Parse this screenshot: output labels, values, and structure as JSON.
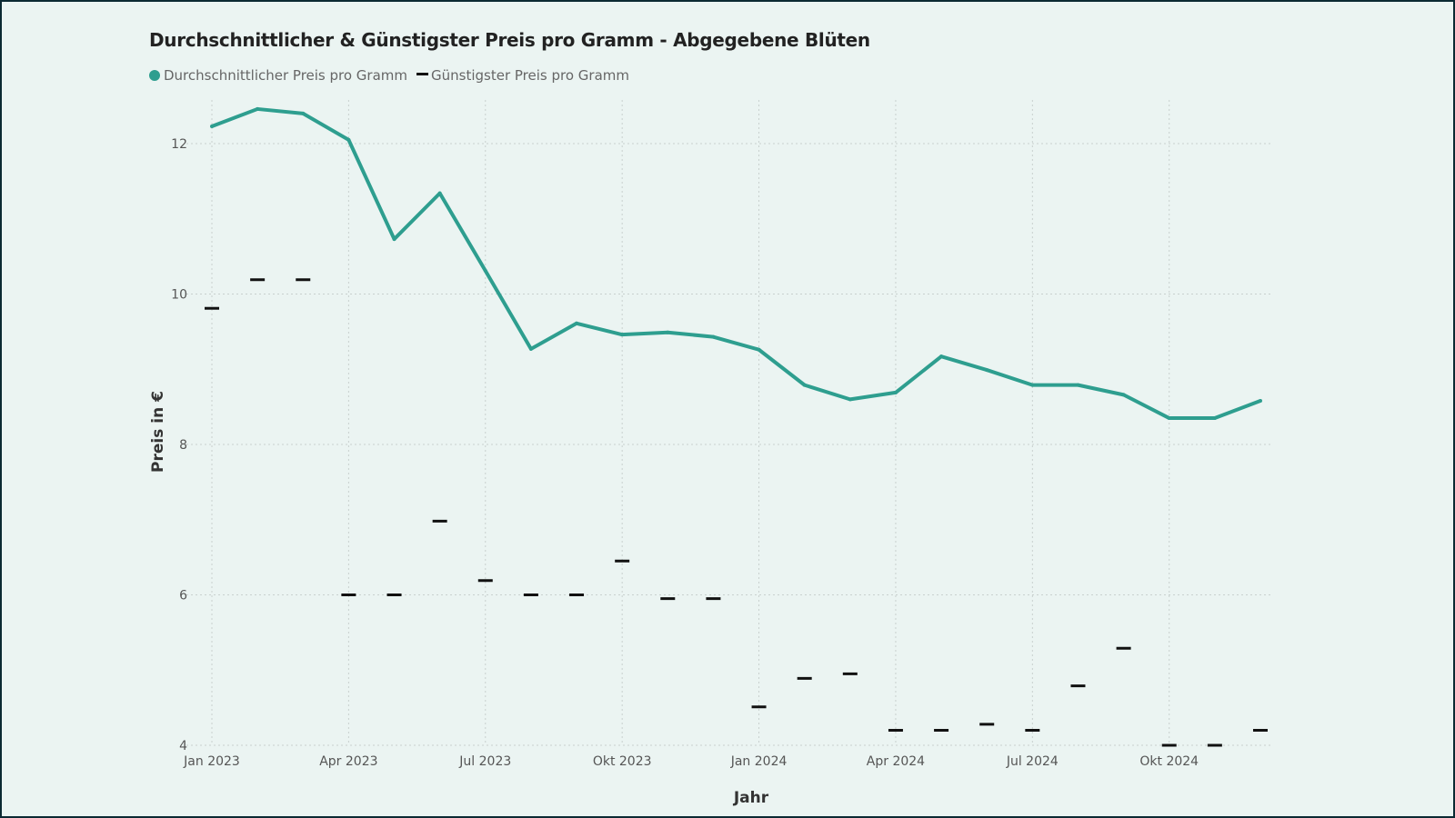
{
  "chart_data": {
    "type": "line",
    "title": "Durchschnittlicher & Günstigster Preis pro Gramm - Abgegebene Blüten",
    "xlabel": "Jahr",
    "ylabel": "Preis in €",
    "ylim": [
      4,
      12.6
    ],
    "yticks": [
      4,
      6,
      8,
      10,
      12
    ],
    "grid": true,
    "legend_position": "top-left",
    "months": [
      "2023-01",
      "2023-02",
      "2023-03",
      "2023-04",
      "2023-05",
      "2023-06",
      "2023-07",
      "2023-08",
      "2023-09",
      "2023-10",
      "2023-11",
      "2023-12",
      "2024-01",
      "2024-02",
      "2024-03",
      "2024-04",
      "2024-05",
      "2024-06",
      "2024-07",
      "2024-08",
      "2024-09",
      "2024-10",
      "2024-11",
      "2024-12"
    ],
    "xticks": [
      {
        "index": 0,
        "label": "Jan 2023"
      },
      {
        "index": 3,
        "label": "Apr 2023"
      },
      {
        "index": 6,
        "label": "Jul 2023"
      },
      {
        "index": 9,
        "label": "Okt 2023"
      },
      {
        "index": 12,
        "label": "Jan 2024"
      },
      {
        "index": 15,
        "label": "Apr 2024"
      },
      {
        "index": 18,
        "label": "Jul 2024"
      },
      {
        "index": 21,
        "label": "Okt 2024"
      }
    ],
    "series": [
      {
        "name": "Durchschnittlicher Preis pro Gramm",
        "style": "line",
        "color": "#2e9e8f",
        "values": [
          12.23,
          12.46,
          12.4,
          12.05,
          10.73,
          11.34,
          10.31,
          9.27,
          9.61,
          9.46,
          9.49,
          9.43,
          9.26,
          8.79,
          8.6,
          8.69,
          9.17,
          8.99,
          8.79,
          8.79,
          8.66,
          8.35,
          8.35,
          8.58
        ]
      },
      {
        "name": "Günstigster Preis pro Gramm",
        "style": "dash-marker",
        "color": "#111111",
        "values": [
          9.81,
          10.19,
          10.19,
          6.0,
          6.0,
          6.98,
          6.19,
          6.0,
          6.0,
          6.45,
          5.95,
          5.95,
          4.51,
          4.89,
          4.95,
          4.2,
          4.2,
          4.28,
          4.2,
          4.79,
          5.29,
          4.0,
          4.0,
          4.2
        ]
      }
    ]
  }
}
